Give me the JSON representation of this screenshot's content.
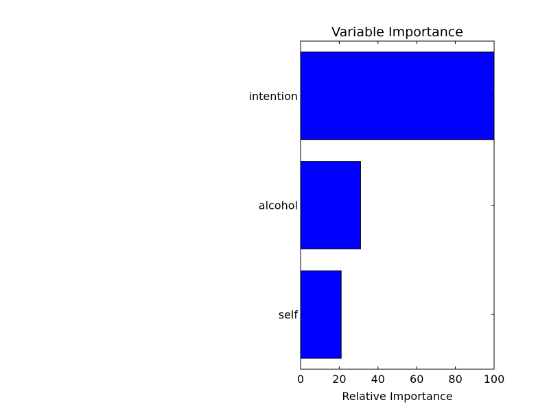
{
  "chart_data": {
    "type": "bar",
    "orientation": "horizontal",
    "title": "Variable Importance",
    "xlabel": "Relative Importance",
    "ylabel": "",
    "categories": [
      "intention",
      "alcohol",
      "self"
    ],
    "values": [
      100,
      31,
      21
    ],
    "xlim": [
      0,
      100
    ],
    "xticks": [
      "0",
      "20",
      "40",
      "60",
      "80",
      "100"
    ],
    "bar_color": "#0000ff",
    "edge_color": "#000000",
    "grid": false,
    "legend": "none"
  }
}
